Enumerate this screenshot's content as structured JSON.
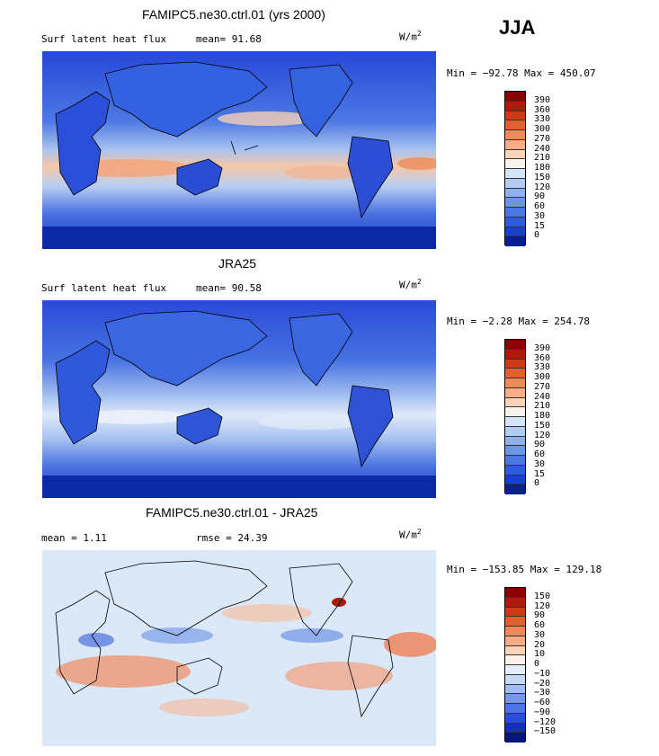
{
  "season": "JJA",
  "colors": {
    "ocean_deep": "#1f3fd6",
    "ocean_mid": "#3f6be8",
    "ocean_light": "#8fb0f2",
    "warm": "#f08a5a",
    "warm_dark": "#d8401a",
    "pale": "#dbe8f8",
    "land_line": "#000000"
  },
  "panels": [
    {
      "title": "FAMIPC5.ne30.ctrl.01 (yrs 2000)",
      "left_label": "Surf latent heat flux",
      "stat1": "mean=  91.68",
      "stat2": "",
      "units": "W/m",
      "units_sup": "2",
      "minmax": "Min = −92.78 Max = 450.07",
      "colorbar": {
        "labels": [
          "390",
          "360",
          "330",
          "300",
          "270",
          "240",
          "210",
          "180",
          "150",
          "120",
          "90",
          "60",
          "30",
          "15",
          "0"
        ],
        "colors": [
          "#8b0000",
          "#b01a0c",
          "#cc3a18",
          "#e0602f",
          "#ee8a5c",
          "#f6ae88",
          "#fbd3b8",
          "#f7f2ec",
          "#d6e4f7",
          "#b3cdf2",
          "#8eb2ec",
          "#6c95e6",
          "#4b78e0",
          "#2c5cd8",
          "#1840c8",
          "#0a1f8f"
        ]
      }
    },
    {
      "title": "JRA25",
      "left_label": "Surf latent heat flux",
      "stat1": "mean=  90.58",
      "stat2": "",
      "units": "W/m",
      "units_sup": "2",
      "minmax": "Min =  −2.28 Max = 254.78",
      "colorbar": {
        "labels": [
          "390",
          "360",
          "330",
          "300",
          "270",
          "240",
          "210",
          "180",
          "150",
          "120",
          "90",
          "60",
          "30",
          "15",
          "0"
        ],
        "colors": [
          "#8b0000",
          "#b01a0c",
          "#cc3a18",
          "#e0602f",
          "#ee8a5c",
          "#f6ae88",
          "#fbd3b8",
          "#f7f2ec",
          "#d6e4f7",
          "#b3cdf2",
          "#8eb2ec",
          "#6c95e6",
          "#4b78e0",
          "#2c5cd8",
          "#1840c8",
          "#0a1f8f"
        ]
      }
    },
    {
      "title": "FAMIPC5.ne30.ctrl.01 - JRA25",
      "left_label": "mean =   1.11",
      "stat1": "rmse =  24.39",
      "stat2": "",
      "units": "W/m",
      "units_sup": "2",
      "minmax": "Min = −153.85 Max = 129.18",
      "colorbar": {
        "labels": [
          "150",
          "120",
          "90",
          "60",
          "30",
          "20",
          "10",
          "0",
          "−10",
          "−20",
          "−30",
          "−60",
          "−90",
          "−120",
          "−150"
        ],
        "colors": [
          "#8b0000",
          "#b01a0c",
          "#cc3a18",
          "#e0602f",
          "#ee8a5c",
          "#f6ae88",
          "#fbd3b8",
          "#fdf0e6",
          "#e6eefa",
          "#c8d9f5",
          "#9ebdf0",
          "#7399e8",
          "#4a74df",
          "#2a4fd2",
          "#1230b8",
          "#06157a"
        ]
      }
    }
  ]
}
